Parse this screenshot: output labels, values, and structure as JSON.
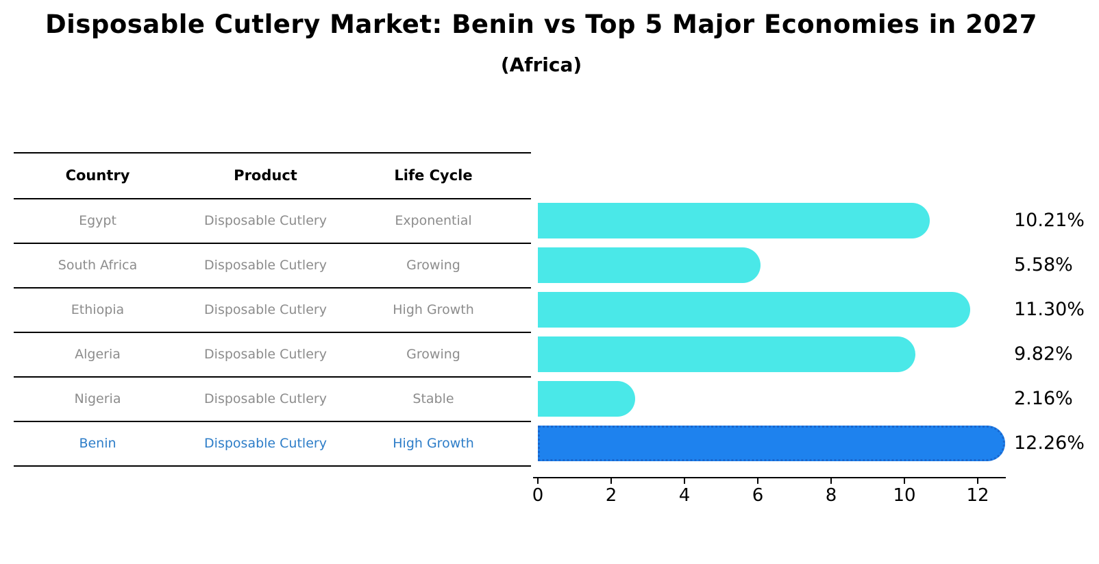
{
  "chart_data": {
    "type": "bar",
    "orientation": "horizontal",
    "title": "Disposable Cutlery Market: Benin vs Top 5 Major Economies in 2027",
    "subtitle": "(Africa)",
    "table_headers": [
      "Country",
      "Product",
      "Life Cycle"
    ],
    "categories": [
      "Egypt",
      "South Africa",
      "Ethiopia",
      "Algeria",
      "Nigeria",
      "Benin"
    ],
    "values": [
      10.21,
      5.58,
      11.3,
      9.82,
      2.16,
      12.26
    ],
    "value_labels": [
      "10.21%",
      "5.58%",
      "11.30%",
      "9.82%",
      "2.16%",
      "12.26%"
    ],
    "rows": [
      {
        "country": "Egypt",
        "product": "Disposable Cutlery",
        "life_cycle": "Exponential",
        "value": 10.21,
        "value_label": "10.21%",
        "highlight": false
      },
      {
        "country": "South Africa",
        "product": "Disposable Cutlery",
        "life_cycle": "Growing",
        "value": 5.58,
        "value_label": "5.58%",
        "highlight": false
      },
      {
        "country": "Ethiopia",
        "product": "Disposable Cutlery",
        "life_cycle": "High Growth",
        "value": 11.3,
        "value_label": "11.30%",
        "highlight": false
      },
      {
        "country": "Algeria",
        "product": "Disposable Cutlery",
        "life_cycle": "Growing",
        "value": 9.82,
        "value_label": "9.82%",
        "highlight": false
      },
      {
        "country": "Nigeria",
        "product": "Disposable Cutlery",
        "life_cycle": "Stable",
        "value": 2.16,
        "value_label": "2.16%",
        "highlight": false
      },
      {
        "country": "Benin",
        "product": "Disposable Cutlery",
        "life_cycle": "High Growth",
        "value": 12.26,
        "value_label": "12.26%",
        "highlight": true
      }
    ],
    "highlight_category": "Benin",
    "xlim": [
      0,
      12.9
    ],
    "x_tick_values": [
      0,
      2,
      4,
      6,
      8,
      10,
      12
    ],
    "x_tick_labels": [
      "0",
      "2",
      "4",
      "6",
      "8",
      "10",
      "12"
    ],
    "grid": false,
    "legend": null,
    "colors": {
      "bar": "#4AE8E8",
      "highlight_bar": "#1E82EE",
      "highlight_bar_border": "#1A66CC",
      "highlight_text": "#2D7DC8",
      "row_text": "#8C8C8C",
      "header_text": "#000000"
    }
  }
}
